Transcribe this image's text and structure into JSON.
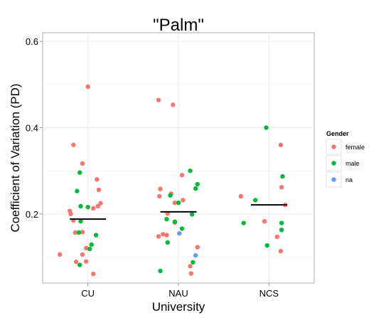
{
  "chart_data": {
    "type": "scatter",
    "title": "\"Palm\"",
    "xlabel": "University",
    "ylabel": "Coefficient of Variation (PD)",
    "categories": [
      "CU",
      "NAU",
      "NCS"
    ],
    "ylim": [
      0.04,
      0.62
    ],
    "yticks": [
      0.2,
      0.4,
      0.6
    ],
    "ytick_labels": [
      "0.2",
      "0.4",
      "0.6"
    ],
    "grid": true,
    "legend": {
      "title": "Gender",
      "position": "right",
      "entries": [
        {
          "label": "female",
          "color": "#F8766D"
        },
        {
          "label": "male",
          "color": "#00BA38"
        },
        {
          "label": "na",
          "color": "#619CFF"
        }
      ]
    },
    "medians": [
      {
        "category": "CU",
        "value": 0.188
      },
      {
        "category": "NAU",
        "value": 0.205
      },
      {
        "category": "NCS",
        "value": 0.221
      }
    ],
    "series": [
      {
        "name": "female",
        "color": "#F8766D",
        "points": [
          {
            "x": "CU",
            "jitter": 0.0,
            "y": 0.495
          },
          {
            "x": "CU",
            "jitter": -0.16,
            "y": 0.36
          },
          {
            "x": "CU",
            "jitter": -0.06,
            "y": 0.317
          },
          {
            "x": "CU",
            "jitter": 0.1,
            "y": 0.28
          },
          {
            "x": "CU",
            "jitter": 0.12,
            "y": 0.256
          },
          {
            "x": "CU",
            "jitter": 0.14,
            "y": 0.225
          },
          {
            "x": "CU",
            "jitter": 0.11,
            "y": 0.218
          },
          {
            "x": "CU",
            "jitter": 0.06,
            "y": 0.213
          },
          {
            "x": "CU",
            "jitter": -0.2,
            "y": 0.207
          },
          {
            "x": "CU",
            "jitter": -0.19,
            "y": 0.2
          },
          {
            "x": "CU",
            "jitter": -0.16,
            "y": 0.185
          },
          {
            "x": "CU",
            "jitter": -0.14,
            "y": 0.157
          },
          {
            "x": "CU",
            "jitter": -0.06,
            "y": 0.158
          },
          {
            "x": "CU",
            "jitter": -0.02,
            "y": 0.121
          },
          {
            "x": "CU",
            "jitter": -0.06,
            "y": 0.106
          },
          {
            "x": "CU",
            "jitter": -0.31,
            "y": 0.106
          },
          {
            "x": "CU",
            "jitter": -0.02,
            "y": 0.09
          },
          {
            "x": "CU",
            "jitter": -0.13,
            "y": 0.089
          },
          {
            "x": "CU",
            "jitter": 0.06,
            "y": 0.061
          },
          {
            "x": "NAU",
            "jitter": -0.22,
            "y": 0.464
          },
          {
            "x": "NAU",
            "jitter": -0.06,
            "y": 0.453
          },
          {
            "x": "NAU",
            "jitter": 0.04,
            "y": 0.29
          },
          {
            "x": "NAU",
            "jitter": -0.2,
            "y": 0.258
          },
          {
            "x": "NAU",
            "jitter": -0.08,
            "y": 0.247
          },
          {
            "x": "NAU",
            "jitter": -0.21,
            "y": 0.241
          },
          {
            "x": "NAU",
            "jitter": 0.05,
            "y": 0.232
          },
          {
            "x": "NAU",
            "jitter": -0.04,
            "y": 0.226
          },
          {
            "x": "NAU",
            "jitter": -0.12,
            "y": 0.201
          },
          {
            "x": "NAU",
            "jitter": -0.04,
            "y": 0.18
          },
          {
            "x": "NAU",
            "jitter": -0.17,
            "y": 0.153
          },
          {
            "x": "NAU",
            "jitter": -0.13,
            "y": 0.151
          },
          {
            "x": "NAU",
            "jitter": -0.22,
            "y": 0.148
          },
          {
            "x": "NAU",
            "jitter": 0.21,
            "y": 0.123
          },
          {
            "x": "NAU",
            "jitter": 0.13,
            "y": 0.079
          },
          {
            "x": "NAU",
            "jitter": 0.14,
            "y": 0.062
          },
          {
            "x": "NCS",
            "jitter": -0.31,
            "y": 0.241
          },
          {
            "x": "NCS",
            "jitter": 0.13,
            "y": 0.36
          },
          {
            "x": "NCS",
            "jitter": 0.14,
            "y": 0.262
          },
          {
            "x": "NCS",
            "jitter": 0.18,
            "y": 0.221
          },
          {
            "x": "NCS",
            "jitter": -0.05,
            "y": 0.183
          },
          {
            "x": "NCS",
            "jitter": 0.09,
            "y": 0.147
          },
          {
            "x": "NCS",
            "jitter": 0.13,
            "y": 0.114
          }
        ]
      },
      {
        "name": "male",
        "color": "#00BA38",
        "points": [
          {
            "x": "CU",
            "jitter": -0.09,
            "y": 0.296
          },
          {
            "x": "CU",
            "jitter": -0.12,
            "y": 0.253
          },
          {
            "x": "CU",
            "jitter": -0.08,
            "y": 0.218
          },
          {
            "x": "CU",
            "jitter": 0.0,
            "y": 0.216
          },
          {
            "x": "CU",
            "jitter": -0.08,
            "y": 0.183
          },
          {
            "x": "CU",
            "jitter": -0.1,
            "y": 0.157
          },
          {
            "x": "CU",
            "jitter": 0.09,
            "y": 0.151
          },
          {
            "x": "CU",
            "jitter": 0.04,
            "y": 0.129
          },
          {
            "x": "CU",
            "jitter": 0.02,
            "y": 0.119
          },
          {
            "x": "CU",
            "jitter": -0.09,
            "y": 0.082
          },
          {
            "x": "NAU",
            "jitter": 0.13,
            "y": 0.3
          },
          {
            "x": "NAU",
            "jitter": 0.21,
            "y": 0.269
          },
          {
            "x": "NAU",
            "jitter": 0.19,
            "y": 0.259
          },
          {
            "x": "NAU",
            "jitter": -0.09,
            "y": 0.243
          },
          {
            "x": "NAU",
            "jitter": 0.0,
            "y": 0.226
          },
          {
            "x": "NAU",
            "jitter": 0.15,
            "y": 0.199
          },
          {
            "x": "NAU",
            "jitter": -0.13,
            "y": 0.188
          },
          {
            "x": "NAU",
            "jitter": -0.04,
            "y": 0.182
          },
          {
            "x": "NAU",
            "jitter": 0.04,
            "y": 0.166
          },
          {
            "x": "NAU",
            "jitter": -0.12,
            "y": 0.134
          },
          {
            "x": "NAU",
            "jitter": 0.16,
            "y": 0.088
          },
          {
            "x": "NAU",
            "jitter": -0.2,
            "y": 0.068
          },
          {
            "x": "NCS",
            "jitter": -0.03,
            "y": 0.4
          },
          {
            "x": "NCS",
            "jitter": 0.15,
            "y": 0.287
          },
          {
            "x": "NCS",
            "jitter": -0.15,
            "y": 0.232
          },
          {
            "x": "NCS",
            "jitter": -0.28,
            "y": 0.179
          },
          {
            "x": "NCS",
            "jitter": 0.14,
            "y": 0.179
          },
          {
            "x": "NCS",
            "jitter": 0.14,
            "y": 0.163
          },
          {
            "x": "NCS",
            "jitter": -0.02,
            "y": 0.127
          }
        ]
      },
      {
        "name": "na",
        "color": "#619CFF",
        "points": [
          {
            "x": "NAU",
            "jitter": 0.01,
            "y": 0.155
          },
          {
            "x": "NAU",
            "jitter": 0.19,
            "y": 0.104
          }
        ]
      }
    ]
  }
}
